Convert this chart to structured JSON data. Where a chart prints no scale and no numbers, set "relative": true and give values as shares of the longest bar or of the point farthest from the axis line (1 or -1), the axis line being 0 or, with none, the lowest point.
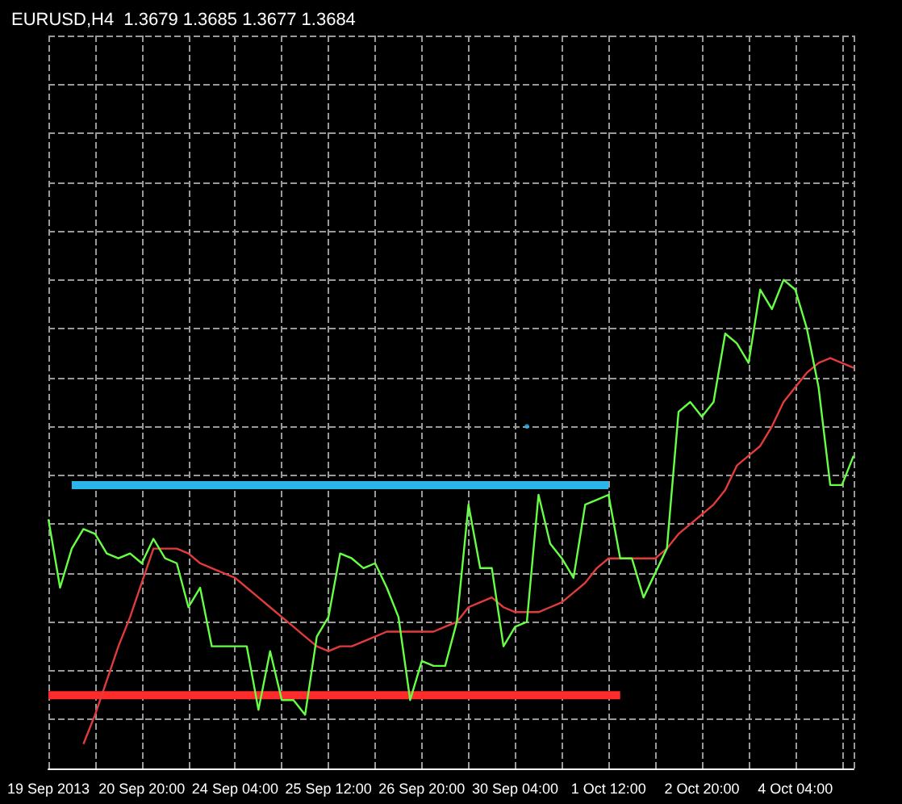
{
  "chart_data": {
    "type": "line",
    "title": "EURUSD,H4  1.3679 1.3685 1.3677 1.3684",
    "relative": true,
    "grid": true,
    "marker": "none",
    "tick_labels": "x",
    "categories": [
      "19 Sep 2013",
      null,
      null,
      null,
      null,
      null,
      null,
      null,
      "20 Sep 20:00",
      null,
      null,
      null,
      null,
      null,
      null,
      null,
      "24 Sep 04:00",
      null,
      null,
      null,
      null,
      null,
      null,
      null,
      "25 Sep 12:00",
      null,
      null,
      null,
      null,
      null,
      null,
      null,
      "26 Sep 20:00",
      null,
      null,
      null,
      null,
      null,
      null,
      null,
      "30 Sep 04:00",
      null,
      null,
      null,
      null,
      null,
      null,
      null,
      "1 Oct 12:00",
      null,
      null,
      null,
      null,
      null,
      null,
      null,
      "2 Oct 20:00",
      null,
      null,
      null,
      null,
      null,
      null,
      null,
      "4 Oct 04:00",
      null,
      null,
      null,
      null,
      null
    ],
    "series": [
      {
        "color": "#ff2a2a",
        "values": [
          0.15,
          0.15,
          0.15,
          0.15,
          0.15,
          0.15,
          0.15,
          0.15,
          0.15,
          0.15,
          0.15,
          0.15,
          0.15,
          0.15,
          0.15,
          0.15,
          0.15,
          0.15,
          0.15,
          0.15,
          0.15,
          0.15,
          0.15,
          0.15,
          0.15,
          0.15,
          0.15,
          0.15,
          0.15,
          0.15,
          0.15,
          0.15,
          0.15,
          0.15,
          0.15,
          0.15,
          0.15,
          0.15,
          0.15,
          0.15,
          0.15,
          0.15,
          0.15,
          0.15,
          0.15,
          0.15,
          0.15,
          0.15,
          0.15,
          0.15,
          null,
          null,
          null,
          null,
          null,
          null,
          null,
          null,
          null,
          null,
          null,
          null,
          null,
          null,
          null,
          null,
          null,
          null,
          null,
          null
        ]
      },
      {
        "color": "#2bb5e8",
        "values": [
          null,
          null,
          0.58,
          0.58,
          0.58,
          0.58,
          0.58,
          0.58,
          0.58,
          0.58,
          0.58,
          0.58,
          0.58,
          0.58,
          0.58,
          0.58,
          0.58,
          0.58,
          0.58,
          0.58,
          0.58,
          0.58,
          0.58,
          0.58,
          0.58,
          0.58,
          0.58,
          0.58,
          0.58,
          0.58,
          0.58,
          0.58,
          0.58,
          0.58,
          0.58,
          0.58,
          0.58,
          0.58,
          0.58,
          0.58,
          0.58,
          0.58,
          0.58,
          0.58,
          0.58,
          0.58,
          0.58,
          0.58,
          0.58,
          null,
          null,
          null,
          null,
          null,
          null,
          null,
          null,
          null,
          null,
          null,
          null,
          null,
          null,
          null,
          null,
          null,
          null,
          null,
          null,
          null
        ]
      },
      {
        "color": "#e23b3b",
        "values": [
          null,
          null,
          null,
          0.05,
          0.11,
          0.18,
          0.25,
          0.31,
          0.38,
          0.45,
          0.45,
          0.45,
          0.44,
          0.42,
          0.41,
          0.4,
          0.39,
          0.37,
          0.35,
          0.33,
          0.31,
          0.29,
          0.27,
          0.25,
          0.24,
          0.25,
          0.25,
          0.26,
          0.27,
          0.28,
          0.28,
          0.28,
          0.28,
          0.28,
          0.29,
          0.3,
          0.33,
          0.34,
          0.35,
          0.33,
          0.32,
          0.32,
          0.32,
          0.33,
          0.34,
          0.36,
          0.38,
          0.41,
          0.43,
          0.43,
          0.43,
          0.43,
          0.43,
          0.45,
          0.48,
          0.5,
          0.52,
          0.54,
          0.57,
          0.62,
          0.64,
          0.66,
          0.7,
          0.75,
          0.78,
          0.81,
          0.83,
          0.84,
          0.83,
          0.82
        ]
      },
      {
        "color": "#66ff44",
        "values": [
          0.51,
          0.37,
          0.45,
          0.49,
          0.48,
          0.44,
          0.43,
          0.44,
          0.42,
          0.47,
          0.43,
          0.42,
          0.33,
          0.37,
          0.25,
          0.25,
          0.25,
          0.25,
          0.12,
          0.24,
          0.14,
          0.14,
          0.11,
          0.27,
          0.31,
          0.44,
          0.43,
          0.41,
          0.42,
          0.37,
          0.31,
          0.14,
          0.22,
          0.21,
          0.21,
          0.3,
          0.54,
          0.41,
          0.41,
          0.25,
          0.29,
          0.3,
          0.56,
          0.46,
          0.43,
          0.39,
          0.54,
          0.55,
          0.56,
          0.43,
          0.43,
          0.35,
          0.4,
          0.45,
          0.73,
          0.75,
          0.72,
          0.75,
          0.89,
          0.87,
          0.83,
          0.98,
          0.94,
          1,
          0.98,
          0.9,
          0.78,
          0.58,
          0.58,
          0.64
        ]
      },
      {
        "type": "scatter",
        "color": "#2bb5e8",
        "values": [
          null,
          null,
          null,
          null,
          null,
          null,
          null,
          null,
          null,
          null,
          null,
          null,
          null,
          null,
          null,
          null,
          null,
          null,
          null,
          null,
          null,
          null,
          null,
          null,
          null,
          null,
          null,
          null,
          null,
          null,
          null,
          null,
          null,
          null,
          null,
          null,
          null,
          null,
          null,
          null,
          null,
          0.7,
          null,
          null,
          null,
          null,
          null,
          null,
          null,
          null,
          null,
          null,
          null,
          null,
          null,
          null,
          null,
          null,
          null,
          null,
          null,
          null,
          null,
          null,
          null,
          null,
          null,
          null,
          null,
          null
        ]
      }
    ]
  }
}
